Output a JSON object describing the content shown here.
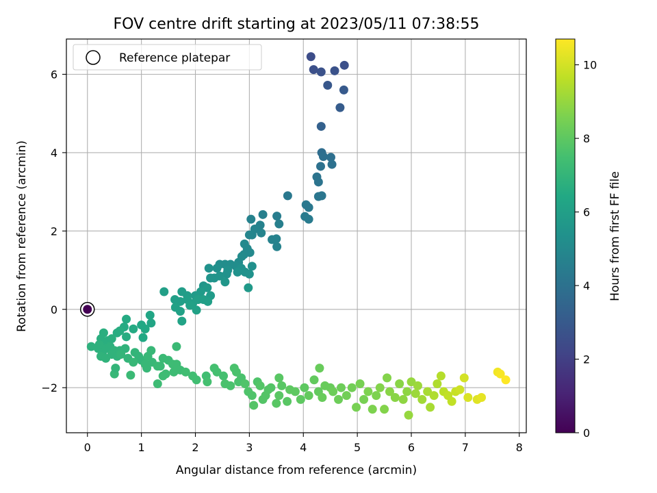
{
  "chart_data": {
    "type": "scatter",
    "title": "FOV centre drift starting at 2023/05/11 07:38:55",
    "xlabel": "Angular distance from reference (arcmin)",
    "ylabel": "Rotation from reference (arcmin)",
    "xlim": [
      -0.39,
      8.13
    ],
    "ylim": [
      -3.15,
      6.9
    ],
    "xticks": [
      0,
      1,
      2,
      3,
      4,
      5,
      6,
      7,
      8
    ],
    "yticks": [
      -2,
      0,
      2,
      4,
      6
    ],
    "grid": true,
    "legend": {
      "position": "top-left",
      "entries": [
        "Reference platepar"
      ]
    },
    "colorbar": {
      "label": "Hours from first FF file",
      "colormap": "viridis",
      "range": [
        0,
        10.7
      ],
      "ticks": [
        0,
        2,
        4,
        6,
        8,
        10
      ]
    },
    "reference_point": {
      "x": 0,
      "y": 0,
      "hours": 0
    },
    "points_columns": [
      "x",
      "y",
      "hours"
    ],
    "points": [
      [
        4.14,
        6.45,
        2.5
      ],
      [
        4.19,
        6.12,
        2.6
      ],
      [
        4.33,
        6.06,
        2.7
      ],
      [
        4.58,
        6.09,
        2.7
      ],
      [
        4.76,
        6.23,
        2.6
      ],
      [
        4.45,
        5.72,
        2.9
      ],
      [
        4.75,
        5.6,
        3.0
      ],
      [
        4.68,
        5.15,
        3.1
      ],
      [
        4.33,
        4.67,
        3.3
      ],
      [
        4.34,
        4.0,
        3.8
      ],
      [
        4.37,
        3.9,
        3.9
      ],
      [
        4.51,
        3.88,
        3.9
      ],
      [
        4.53,
        3.7,
        4.0
      ],
      [
        4.32,
        3.65,
        4.0
      ],
      [
        4.25,
        3.38,
        4.1
      ],
      [
        4.28,
        3.25,
        4.1
      ],
      [
        4.34,
        2.9,
        4.2
      ],
      [
        4.28,
        2.88,
        4.2
      ],
      [
        4.05,
        2.67,
        4.3
      ],
      [
        4.1,
        2.6,
        4.3
      ],
      [
        4.03,
        2.37,
        4.4
      ],
      [
        4.1,
        2.3,
        4.4
      ],
      [
        3.71,
        2.9,
        4.3
      ],
      [
        3.51,
        2.38,
        4.5
      ],
      [
        3.55,
        2.18,
        4.6
      ],
      [
        3.42,
        1.78,
        4.7
      ],
      [
        3.51,
        1.6,
        4.7
      ],
      [
        3.5,
        1.8,
        4.7
      ],
      [
        3.25,
        2.42,
        4.6
      ],
      [
        3.2,
        2.15,
        4.7
      ],
      [
        3.1,
        2.05,
        4.8
      ],
      [
        3.03,
        2.3,
        4.7
      ],
      [
        3.05,
        1.9,
        4.8
      ],
      [
        3.0,
        1.9,
        4.9
      ],
      [
        3.22,
        1.95,
        4.8
      ],
      [
        2.91,
        1.67,
        5.0
      ],
      [
        2.96,
        1.55,
        5.0
      ],
      [
        3.01,
        1.45,
        5.0
      ],
      [
        2.9,
        1.4,
        5.0
      ],
      [
        2.86,
        1.35,
        5.1
      ],
      [
        2.8,
        1.2,
        5.1
      ],
      [
        2.75,
        1.1,
        5.2
      ],
      [
        2.65,
        1.15,
        5.2
      ],
      [
        2.55,
        1.15,
        5.2
      ],
      [
        2.45,
        1.15,
        5.2
      ],
      [
        2.4,
        1.05,
        5.3
      ],
      [
        2.6,
        1.0,
        5.3
      ],
      [
        2.85,
        1.05,
        5.3
      ],
      [
        3.05,
        1.1,
        5.3
      ],
      [
        2.92,
        0.95,
        5.4
      ],
      [
        2.78,
        0.95,
        5.4
      ],
      [
        2.58,
        0.9,
        5.4
      ],
      [
        2.45,
        0.85,
        5.5
      ],
      [
        2.35,
        0.8,
        5.5
      ],
      [
        2.25,
        1.05,
        5.4
      ],
      [
        2.28,
        0.8,
        5.5
      ],
      [
        2.55,
        0.7,
        5.6
      ],
      [
        3.0,
        0.9,
        5.4
      ],
      [
        2.98,
        0.55,
        5.7
      ],
      [
        2.15,
        0.6,
        5.6
      ],
      [
        2.22,
        0.55,
        5.7
      ],
      [
        2.1,
        0.45,
        5.8
      ],
      [
        2.0,
        0.35,
        5.8
      ],
      [
        2.28,
        0.35,
        5.8
      ],
      [
        1.85,
        0.35,
        5.9
      ],
      [
        1.75,
        0.45,
        5.9
      ],
      [
        1.72,
        0.2,
        6.0
      ],
      [
        1.62,
        0.25,
        6.0
      ],
      [
        1.63,
        0.05,
        6.1
      ],
      [
        1.72,
        -0.05,
        6.1
      ],
      [
        1.75,
        -0.3,
        6.2
      ],
      [
        1.85,
        0.25,
        6.0
      ],
      [
        1.95,
        0.15,
        6.0
      ],
      [
        2.05,
        0.25,
        6.0
      ],
      [
        2.15,
        0.25,
        6.0
      ],
      [
        2.23,
        0.2,
        6.0
      ],
      [
        2.02,
        -0.02,
        6.1
      ],
      [
        1.42,
        0.45,
        6.0
      ],
      [
        1.9,
        0.1,
        6.1
      ],
      [
        1.16,
        -0.15,
        6.3
      ],
      [
        1.18,
        -0.35,
        6.3
      ],
      [
        1.07,
        -0.5,
        6.4
      ],
      [
        1.03,
        -0.72,
        6.4
      ],
      [
        1.0,
        -0.4,
        6.4
      ],
      [
        0.85,
        -0.5,
        6.5
      ],
      [
        0.72,
        -0.25,
        6.5
      ],
      [
        0.68,
        -0.45,
        6.5
      ],
      [
        0.72,
        -0.7,
        6.6
      ],
      [
        0.6,
        -0.55,
        6.6
      ],
      [
        0.55,
        -0.6,
        6.6
      ],
      [
        0.45,
        -0.75,
        6.7
      ],
      [
        0.38,
        -0.8,
        6.7
      ],
      [
        0.3,
        -0.6,
        6.7
      ],
      [
        0.3,
        -0.85,
        6.7
      ],
      [
        0.25,
        -0.75,
        6.7
      ],
      [
        0.22,
        -0.9,
        6.8
      ],
      [
        0.07,
        -0.95,
        6.8
      ],
      [
        0.2,
        -1.0,
        6.8
      ],
      [
        0.28,
        -1.1,
        6.8
      ],
      [
        0.35,
        -1.0,
        6.8
      ],
      [
        0.42,
        -0.95,
        6.8
      ],
      [
        0.5,
        -1.05,
        6.9
      ],
      [
        0.6,
        -1.05,
        6.9
      ],
      [
        0.7,
        -1.0,
        6.9
      ],
      [
        0.25,
        -1.2,
        6.9
      ],
      [
        0.34,
        -1.25,
        6.9
      ],
      [
        0.45,
        -1.15,
        6.9
      ],
      [
        0.55,
        -1.2,
        6.9
      ],
      [
        0.62,
        -1.15,
        7.0
      ],
      [
        0.75,
        -1.25,
        7.0
      ],
      [
        0.88,
        -1.1,
        7.0
      ],
      [
        0.95,
        -1.2,
        7.0
      ],
      [
        1.0,
        -1.3,
        7.0
      ],
      [
        1.12,
        -1.2,
        7.1
      ],
      [
        1.18,
        -1.05,
        7.1
      ],
      [
        1.07,
        -1.4,
        7.1
      ],
      [
        1.1,
        -1.5,
        7.1
      ],
      [
        1.2,
        -1.35,
        7.1
      ],
      [
        1.3,
        -1.45,
        7.2
      ],
      [
        1.35,
        -1.45,
        7.2
      ],
      [
        0.85,
        -1.35,
        7.1
      ],
      [
        0.5,
        -1.65,
        7.1
      ],
      [
        0.52,
        -1.5,
        7.0
      ],
      [
        0.8,
        -1.68,
        7.2
      ],
      [
        1.4,
        -1.25,
        7.2
      ],
      [
        1.5,
        -1.3,
        7.2
      ],
      [
        1.58,
        -1.4,
        7.3
      ],
      [
        1.65,
        -1.4,
        7.3
      ],
      [
        1.72,
        -1.55,
        7.3
      ],
      [
        1.45,
        -1.65,
        7.3
      ],
      [
        1.4,
        -1.7,
        7.3
      ],
      [
        1.6,
        -1.6,
        7.3
      ],
      [
        1.3,
        -1.9,
        7.3
      ],
      [
        1.65,
        -0.95,
        7.2
      ],
      [
        1.82,
        -1.6,
        7.4
      ],
      [
        1.95,
        -1.7,
        7.4
      ],
      [
        2.02,
        -1.8,
        7.4
      ],
      [
        2.2,
        -1.7,
        7.4
      ],
      [
        2.22,
        -1.85,
        7.5
      ],
      [
        2.4,
        -1.6,
        7.5
      ],
      [
        2.35,
        -1.5,
        7.5
      ],
      [
        2.52,
        -1.7,
        7.5
      ],
      [
        2.55,
        -1.9,
        7.6
      ],
      [
        2.65,
        -1.95,
        7.6
      ],
      [
        2.72,
        -1.5,
        7.6
      ],
      [
        2.76,
        -1.6,
        7.6
      ],
      [
        2.8,
        -1.85,
        7.6
      ],
      [
        2.85,
        -1.75,
        7.6
      ],
      [
        2.92,
        -1.9,
        7.7
      ],
      [
        2.98,
        -2.1,
        7.7
      ],
      [
        3.05,
        -2.2,
        7.7
      ],
      [
        3.08,
        -2.45,
        7.8
      ],
      [
        3.15,
        -1.85,
        7.7
      ],
      [
        3.2,
        -1.95,
        7.8
      ],
      [
        3.25,
        -2.3,
        7.8
      ],
      [
        3.3,
        -2.2,
        7.8
      ],
      [
        3.35,
        -2.05,
        7.8
      ],
      [
        3.4,
        -2.0,
        7.8
      ],
      [
        3.5,
        -2.4,
        7.9
      ],
      [
        3.55,
        -2.2,
        7.9
      ],
      [
        3.6,
        -1.95,
        7.9
      ],
      [
        3.55,
        -1.75,
        7.9
      ],
      [
        3.7,
        -2.35,
        7.9
      ],
      [
        3.75,
        -2.05,
        8.0
      ],
      [
        3.85,
        -2.1,
        8.0
      ],
      [
        3.95,
        -2.3,
        8.0
      ],
      [
        4.02,
        -2.0,
        8.0
      ],
      [
        4.1,
        -2.2,
        8.1
      ],
      [
        4.2,
        -1.8,
        8.1
      ],
      [
        4.28,
        -2.1,
        8.1
      ],
      [
        4.3,
        -1.5,
        8.2
      ],
      [
        4.35,
        -2.25,
        8.2
      ],
      [
        4.4,
        -1.95,
        8.2
      ],
      [
        4.5,
        -2.0,
        8.2
      ],
      [
        4.55,
        -2.1,
        8.3
      ],
      [
        4.65,
        -2.3,
        8.3
      ],
      [
        4.7,
        -2.0,
        8.3
      ],
      [
        4.8,
        -2.2,
        8.4
      ],
      [
        4.9,
        -2.0,
        8.4
      ],
      [
        4.98,
        -2.5,
        8.5
      ],
      [
        5.05,
        -1.9,
        8.5
      ],
      [
        5.12,
        -2.3,
        8.5
      ],
      [
        5.2,
        -2.1,
        8.6
      ],
      [
        5.28,
        -2.55,
        8.6
      ],
      [
        5.35,
        -2.2,
        8.6
      ],
      [
        5.42,
        -2.0,
        8.7
      ],
      [
        5.5,
        -2.55,
        8.7
      ],
      [
        5.55,
        -1.75,
        8.7
      ],
      [
        5.6,
        -2.1,
        8.8
      ],
      [
        5.7,
        -2.25,
        8.8
      ],
      [
        5.78,
        -1.9,
        8.8
      ],
      [
        5.85,
        -2.3,
        8.9
      ],
      [
        5.92,
        -2.1,
        8.9
      ],
      [
        5.95,
        -2.7,
        9.0
      ],
      [
        6.0,
        -1.85,
        9.0
      ],
      [
        6.08,
        -2.15,
        9.1
      ],
      [
        6.12,
        -1.95,
        9.1
      ],
      [
        6.2,
        -2.3,
        9.2
      ],
      [
        6.3,
        -2.1,
        9.3
      ],
      [
        6.35,
        -2.5,
        9.3
      ],
      [
        6.42,
        -2.2,
        9.4
      ],
      [
        6.48,
        -1.9,
        9.4
      ],
      [
        6.55,
        -1.7,
        9.5
      ],
      [
        6.6,
        -2.1,
        9.6
      ],
      [
        6.68,
        -2.2,
        9.7
      ],
      [
        6.75,
        -2.35,
        9.7
      ],
      [
        6.82,
        -2.1,
        9.8
      ],
      [
        6.9,
        -2.05,
        9.9
      ],
      [
        6.98,
        -1.75,
        10.0
      ],
      [
        7.05,
        -2.25,
        10.1
      ],
      [
        7.22,
        -2.3,
        10.2
      ],
      [
        7.3,
        -2.25,
        10.3
      ],
      [
        7.6,
        -1.6,
        10.5
      ],
      [
        7.65,
        -1.65,
        10.6
      ],
      [
        7.75,
        -1.8,
        10.7
      ]
    ]
  }
}
